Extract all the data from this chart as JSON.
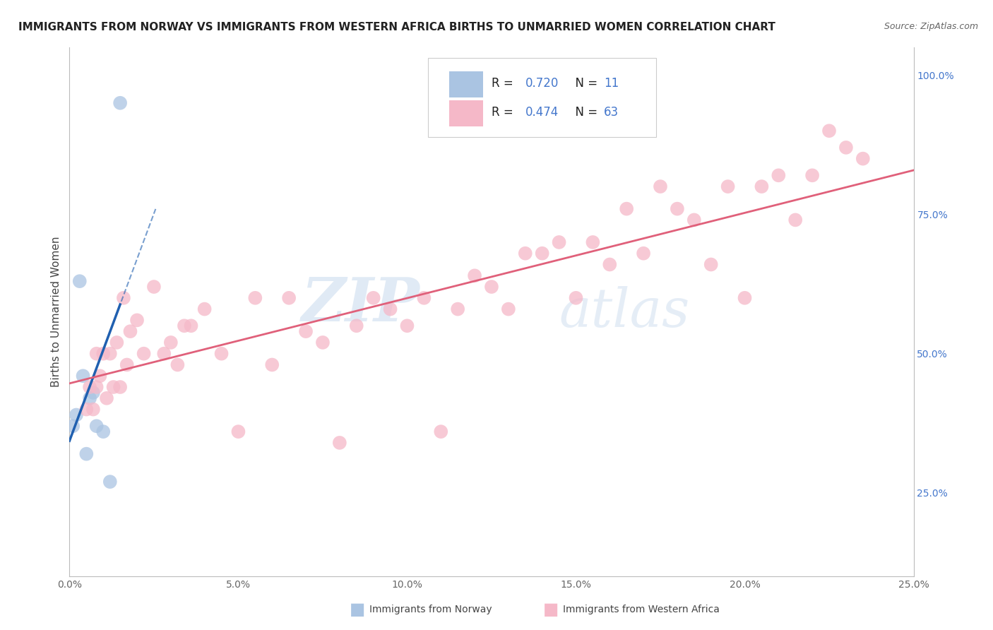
{
  "title": "IMMIGRANTS FROM NORWAY VS IMMIGRANTS FROM WESTERN AFRICA BIRTHS TO UNMARRIED WOMEN CORRELATION CHART",
  "source": "Source: ZipAtlas.com",
  "ylabel": "Births to Unmarried Women",
  "xlim": [
    0.0,
    0.25
  ],
  "ylim": [
    0.1,
    1.05
  ],
  "right_yticks": [
    0.25,
    0.5,
    0.75,
    1.0
  ],
  "right_yticklabels": [
    "25.0%",
    "50.0%",
    "75.0%",
    "100.0%"
  ],
  "bottom_xticks": [
    0.0,
    0.05,
    0.1,
    0.15,
    0.2,
    0.25
  ],
  "bottom_xticklabels": [
    "0.0%",
    "5.0%",
    "10.0%",
    "15.0%",
    "20.0%",
    "25.0%"
  ],
  "norway_color": "#aac4e2",
  "norway_edge": "#aac4e2",
  "norway_line_color": "#2060b0",
  "western_africa_color": "#f5b8c8",
  "western_africa_edge": "#f5b8c8",
  "western_africa_line_color": "#e0607a",
  "r_norway": "0.720",
  "n_norway": "11",
  "r_western_africa": "0.474",
  "n_western_africa": "63",
  "legend_label_norway": "Immigrants from Norway",
  "legend_label_western_africa": "Immigrants from Western Africa",
  "norway_x": [
    0.001,
    0.002,
    0.003,
    0.004,
    0.005,
    0.006,
    0.007,
    0.008,
    0.01,
    0.012,
    0.015
  ],
  "norway_y": [
    0.37,
    0.39,
    0.63,
    0.46,
    0.32,
    0.42,
    0.43,
    0.37,
    0.36,
    0.27,
    0.95
  ],
  "wa_x": [
    0.005,
    0.006,
    0.007,
    0.008,
    0.008,
    0.009,
    0.01,
    0.011,
    0.012,
    0.013,
    0.014,
    0.015,
    0.016,
    0.017,
    0.018,
    0.02,
    0.022,
    0.025,
    0.028,
    0.03,
    0.032,
    0.034,
    0.036,
    0.04,
    0.045,
    0.05,
    0.055,
    0.06,
    0.065,
    0.07,
    0.075,
    0.08,
    0.085,
    0.09,
    0.095,
    0.1,
    0.105,
    0.11,
    0.115,
    0.12,
    0.125,
    0.13,
    0.135,
    0.14,
    0.145,
    0.15,
    0.155,
    0.16,
    0.165,
    0.17,
    0.175,
    0.18,
    0.185,
    0.19,
    0.195,
    0.2,
    0.205,
    0.21,
    0.215,
    0.22,
    0.225,
    0.23,
    0.235
  ],
  "wa_y": [
    0.4,
    0.44,
    0.4,
    0.5,
    0.44,
    0.46,
    0.5,
    0.42,
    0.5,
    0.44,
    0.52,
    0.44,
    0.6,
    0.48,
    0.54,
    0.56,
    0.5,
    0.62,
    0.5,
    0.52,
    0.48,
    0.55,
    0.55,
    0.58,
    0.5,
    0.36,
    0.6,
    0.48,
    0.6,
    0.54,
    0.52,
    0.34,
    0.55,
    0.6,
    0.58,
    0.55,
    0.6,
    0.36,
    0.58,
    0.64,
    0.62,
    0.58,
    0.68,
    0.68,
    0.7,
    0.6,
    0.7,
    0.66,
    0.76,
    0.68,
    0.8,
    0.76,
    0.74,
    0.66,
    0.8,
    0.6,
    0.8,
    0.82,
    0.74,
    0.82,
    0.9,
    0.87,
    0.85
  ],
  "watermark_zip": "ZIP",
  "watermark_atlas": "atlas",
  "grid_color": "#d8d8d8",
  "background_color": "#ffffff",
  "title_fontsize": 11,
  "axis_label_color": "#444444",
  "tick_label_color": "#666666",
  "right_tick_color": "#4477cc",
  "legend_value_color": "#4477cc"
}
